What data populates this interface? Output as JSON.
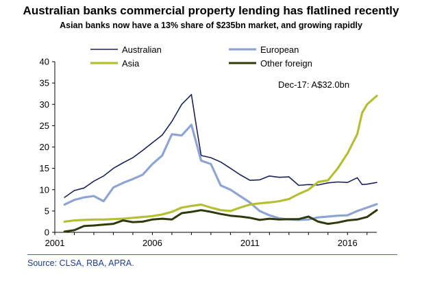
{
  "chart_data": {
    "type": "line",
    "title": "Australian banks commercial property lending has flatlined recently",
    "subtitle": "Asian banks now have a 13% share of $235bn market, and growing rapidly",
    "xlabel": "",
    "ylabel": "",
    "xlim": [
      2001,
      2017.5
    ],
    "ylim": [
      0,
      40
    ],
    "y_ticks": [
      "0",
      "5",
      "10",
      "15",
      "20",
      "25",
      "30",
      "35",
      "40"
    ],
    "x_ticks": [
      "2001",
      "2006",
      "2011",
      "2016"
    ],
    "grid": false,
    "legend_position": "top",
    "annotation": "Dec-17: A$32.0bn",
    "source": "Source: CLSA, RBA, APRA.",
    "series": [
      {
        "name": "Australian",
        "color": "#1a1f5c",
        "points": [
          [
            2001.5,
            8.2
          ],
          [
            2002,
            9.8
          ],
          [
            2002.5,
            10.4
          ],
          [
            2003,
            12
          ],
          [
            2003.5,
            13.2
          ],
          [
            2004,
            15
          ],
          [
            2004.5,
            16.3
          ],
          [
            2005,
            17.5
          ],
          [
            2005.5,
            19.2
          ],
          [
            2006,
            21
          ],
          [
            2006.5,
            22.8
          ],
          [
            2007,
            26
          ],
          [
            2007.5,
            30
          ],
          [
            2008,
            32.3
          ],
          [
            2008.25,
            25
          ],
          [
            2008.5,
            18
          ],
          [
            2009,
            17.5
          ],
          [
            2009.5,
            16.5
          ],
          [
            2010,
            15
          ],
          [
            2010.5,
            13.5
          ],
          [
            2011,
            12.2
          ],
          [
            2011.5,
            12.3
          ],
          [
            2012,
            13.2
          ],
          [
            2012.5,
            12.9
          ],
          [
            2013,
            13
          ],
          [
            2013.5,
            11
          ],
          [
            2014,
            11.2
          ],
          [
            2014.5,
            11.1
          ],
          [
            2015,
            11.6
          ],
          [
            2015.5,
            11.8
          ],
          [
            2016,
            11.7
          ],
          [
            2016.5,
            12.8
          ],
          [
            2016.75,
            11.2
          ],
          [
            2017,
            11.3
          ],
          [
            2017.5,
            11.7
          ]
        ]
      },
      {
        "name": "European",
        "color": "#8ea5d4",
        "points": [
          [
            2001.5,
            6.5
          ],
          [
            2002,
            7.6
          ],
          [
            2002.5,
            8.2
          ],
          [
            2003,
            8.5
          ],
          [
            2003.5,
            7.3
          ],
          [
            2004,
            10.5
          ],
          [
            2004.5,
            11.6
          ],
          [
            2005,
            12.5
          ],
          [
            2005.5,
            13.5
          ],
          [
            2006,
            16
          ],
          [
            2006.5,
            18
          ],
          [
            2007,
            23
          ],
          [
            2007.5,
            22.7
          ],
          [
            2008,
            25.2
          ],
          [
            2008.5,
            16.8
          ],
          [
            2009,
            16
          ],
          [
            2009.5,
            11
          ],
          [
            2010,
            10
          ],
          [
            2010.5,
            8.5
          ],
          [
            2011,
            7
          ],
          [
            2011.5,
            5
          ],
          [
            2012,
            4
          ],
          [
            2012.5,
            3.3
          ],
          [
            2013,
            3
          ],
          [
            2013.5,
            2.9
          ],
          [
            2014,
            3
          ],
          [
            2014.5,
            3.5
          ],
          [
            2015,
            3.7
          ],
          [
            2015.5,
            3.9
          ],
          [
            2016,
            4
          ],
          [
            2016.5,
            5
          ],
          [
            2017,
            5.8
          ],
          [
            2017.5,
            6.6
          ]
        ]
      },
      {
        "name": "Asia",
        "color": "#b5bf32",
        "points": [
          [
            2001.5,
            2.5
          ],
          [
            2002,
            2.8
          ],
          [
            2002.5,
            2.9
          ],
          [
            2003,
            3
          ],
          [
            2003.5,
            3
          ],
          [
            2004,
            3.1
          ],
          [
            2004.5,
            3.2
          ],
          [
            2005,
            3.4
          ],
          [
            2005.5,
            3.6
          ],
          [
            2006,
            3.8
          ],
          [
            2006.5,
            4.2
          ],
          [
            2007,
            4.8
          ],
          [
            2007.5,
            5.8
          ],
          [
            2008,
            6.2
          ],
          [
            2008.5,
            6.5
          ],
          [
            2009,
            5.8
          ],
          [
            2009.5,
            5.2
          ],
          [
            2010,
            5
          ],
          [
            2010.5,
            5.8
          ],
          [
            2011,
            6.5
          ],
          [
            2011.5,
            6.8
          ],
          [
            2012,
            7
          ],
          [
            2012.5,
            7.3
          ],
          [
            2013,
            7.8
          ],
          [
            2013.5,
            9
          ],
          [
            2014,
            10
          ],
          [
            2014.5,
            11.8
          ],
          [
            2015,
            12.2
          ],
          [
            2015.5,
            15
          ],
          [
            2016,
            18.5
          ],
          [
            2016.5,
            23
          ],
          [
            2016.75,
            28
          ],
          [
            2017,
            30
          ],
          [
            2017.5,
            32
          ]
        ]
      },
      {
        "name": "Other foreign",
        "color": "#2e3a0c",
        "points": [
          [
            2001.5,
            0.2
          ],
          [
            2002,
            0.5
          ],
          [
            2002.5,
            1.5
          ],
          [
            2003,
            1.6
          ],
          [
            2003.5,
            1.8
          ],
          [
            2004,
            2
          ],
          [
            2004.5,
            2.8
          ],
          [
            2005,
            2.4
          ],
          [
            2005.5,
            2.5
          ],
          [
            2006,
            3
          ],
          [
            2006.5,
            3.2
          ],
          [
            2007,
            3
          ],
          [
            2007.5,
            4.5
          ],
          [
            2008,
            4.8
          ],
          [
            2008.5,
            5.2
          ],
          [
            2009,
            4.8
          ],
          [
            2009.5,
            4.3
          ],
          [
            2010,
            3.9
          ],
          [
            2010.5,
            3.7
          ],
          [
            2011,
            3.4
          ],
          [
            2011.5,
            2.9
          ],
          [
            2012,
            3.2
          ],
          [
            2012.5,
            3
          ],
          [
            2013,
            3.1
          ],
          [
            2013.5,
            3.1
          ],
          [
            2014,
            3.7
          ],
          [
            2014.5,
            2.5
          ],
          [
            2015,
            2
          ],
          [
            2015.5,
            2.3
          ],
          [
            2016,
            2.8
          ],
          [
            2016.5,
            3
          ],
          [
            2017,
            3.6
          ],
          [
            2017.5,
            5.2
          ]
        ]
      }
    ]
  }
}
